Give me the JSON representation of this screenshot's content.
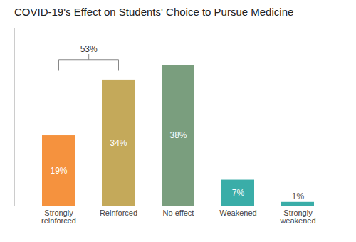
{
  "chart_data": {
    "type": "bar",
    "title": "COVID-19's Effect on Students' Choice to Pursue Medicine",
    "categories": [
      "Strongly\nreinforced",
      "Reinforced",
      "No effect",
      "Weakened",
      "Strongly\nweakened"
    ],
    "values": [
      19,
      34,
      38,
      7,
      1
    ],
    "value_labels": [
      "19%",
      "34%",
      "38%",
      "7%",
      "1%"
    ],
    "data_labels": true,
    "colors": [
      "#F5923E",
      "#C4A95A",
      "#7A9E7E",
      "#3AADA8",
      "#3AADA8"
    ],
    "annotations": [
      "53%"
    ],
    "ylim": [
      0,
      48
    ],
    "tick_labels": "x",
    "grid": false
  }
}
